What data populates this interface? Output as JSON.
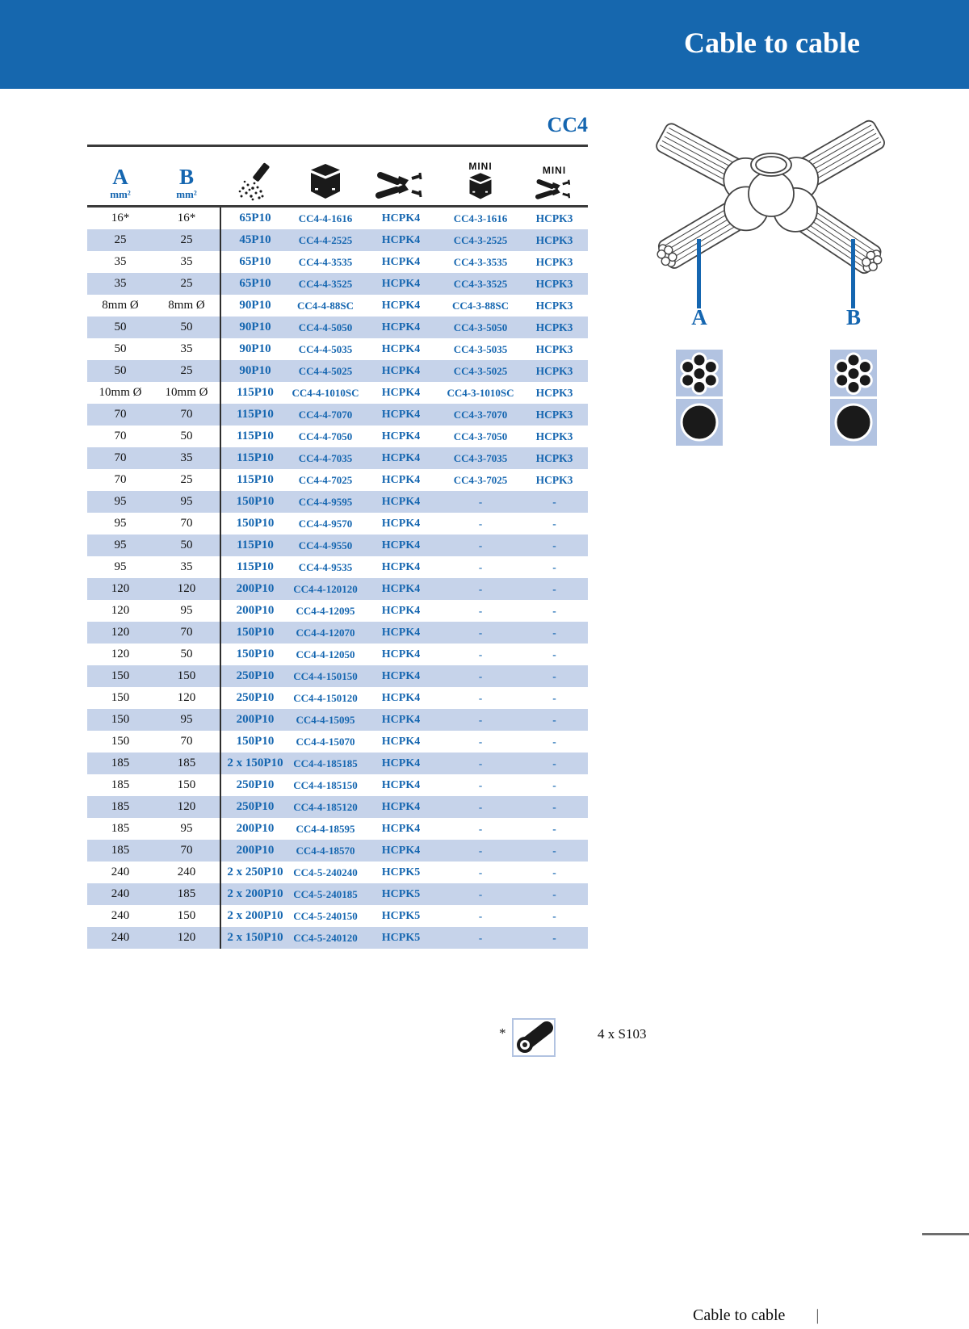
{
  "banner": {
    "title": "Cable to cable"
  },
  "table": {
    "title": "CC4",
    "columns": [
      {
        "label": "A",
        "unit": "mm²"
      },
      {
        "label": "B",
        "unit": "mm²"
      },
      {
        "icon": "powder-cartridge-icon"
      },
      {
        "icon": "mould-icon"
      },
      {
        "icon": "handle-clamp-icon"
      },
      {
        "label": "MINI",
        "icon": "mini-mould-icon"
      },
      {
        "label": "MINI",
        "icon": "mini-handle-clamp-icon"
      }
    ],
    "rows": [
      [
        "16*",
        "16*",
        "65P10",
        "CC4-4-1616",
        "HCPK4",
        "CC4-3-1616",
        "HCPK3"
      ],
      [
        "25",
        "25",
        "45P10",
        "CC4-4-2525",
        "HCPK4",
        "CC4-3-2525",
        "HCPK3"
      ],
      [
        "35",
        "35",
        "65P10",
        "CC4-4-3535",
        "HCPK4",
        "CC4-3-3535",
        "HCPK3"
      ],
      [
        "35",
        "25",
        "65P10",
        "CC4-4-3525",
        "HCPK4",
        "CC4-3-3525",
        "HCPK3"
      ],
      [
        "8mm Ø",
        "8mm Ø",
        "90P10",
        "CC4-4-88SC",
        "HCPK4",
        "CC4-3-88SC",
        "HCPK3"
      ],
      [
        "50",
        "50",
        "90P10",
        "CC4-4-5050",
        "HCPK4",
        "CC4-3-5050",
        "HCPK3"
      ],
      [
        "50",
        "35",
        "90P10",
        "CC4-4-5035",
        "HCPK4",
        "CC4-3-5035",
        "HCPK3"
      ],
      [
        "50",
        "25",
        "90P10",
        "CC4-4-5025",
        "HCPK4",
        "CC4-3-5025",
        "HCPK3"
      ],
      [
        "10mm Ø",
        "10mm Ø",
        "115P10",
        "CC4-4-1010SC",
        "HCPK4",
        "CC4-3-1010SC",
        "HCPK3"
      ],
      [
        "70",
        "70",
        "115P10",
        "CC4-4-7070",
        "HCPK4",
        "CC4-3-7070",
        "HCPK3"
      ],
      [
        "70",
        "50",
        "115P10",
        "CC4-4-7050",
        "HCPK4",
        "CC4-3-7050",
        "HCPK3"
      ],
      [
        "70",
        "35",
        "115P10",
        "CC4-4-7035",
        "HCPK4",
        "CC4-3-7035",
        "HCPK3"
      ],
      [
        "70",
        "25",
        "115P10",
        "CC4-4-7025",
        "HCPK4",
        "CC4-3-7025",
        "HCPK3"
      ],
      [
        "95",
        "95",
        "150P10",
        "CC4-4-9595",
        "HCPK4",
        "-",
        "-"
      ],
      [
        "95",
        "70",
        "150P10",
        "CC4-4-9570",
        "HCPK4",
        "-",
        "-"
      ],
      [
        "95",
        "50",
        "115P10",
        "CC4-4-9550",
        "HCPK4",
        "-",
        "-"
      ],
      [
        "95",
        "35",
        "115P10",
        "CC4-4-9535",
        "HCPK4",
        "-",
        "-"
      ],
      [
        "120",
        "120",
        "200P10",
        "CC4-4-120120",
        "HCPK4",
        "-",
        "-"
      ],
      [
        "120",
        "95",
        "200P10",
        "CC4-4-12095",
        "HCPK4",
        "-",
        "-"
      ],
      [
        "120",
        "70",
        "150P10",
        "CC4-4-12070",
        "HCPK4",
        "-",
        "-"
      ],
      [
        "120",
        "50",
        "150P10",
        "CC4-4-12050",
        "HCPK4",
        "-",
        "-"
      ],
      [
        "150",
        "150",
        "250P10",
        "CC4-4-150150",
        "HCPK4",
        "-",
        "-"
      ],
      [
        "150",
        "120",
        "250P10",
        "CC4-4-150120",
        "HCPK4",
        "-",
        "-"
      ],
      [
        "150",
        "95",
        "200P10",
        "CC4-4-15095",
        "HCPK4",
        "-",
        "-"
      ],
      [
        "150",
        "70",
        "150P10",
        "CC4-4-15070",
        "HCPK4",
        "-",
        "-"
      ],
      [
        "185",
        "185",
        "2 x 150P10",
        "CC4-4-185185",
        "HCPK4",
        "-",
        "-"
      ],
      [
        "185",
        "150",
        "250P10",
        "CC4-4-185150",
        "HCPK4",
        "-",
        "-"
      ],
      [
        "185",
        "120",
        "250P10",
        "CC4-4-185120",
        "HCPK4",
        "-",
        "-"
      ],
      [
        "185",
        "95",
        "200P10",
        "CC4-4-18595",
        "HCPK4",
        "-",
        "-"
      ],
      [
        "185",
        "70",
        "200P10",
        "CC4-4-18570",
        "HCPK4",
        "-",
        "-"
      ],
      [
        "240",
        "240",
        "2 x 250P10",
        "CC4-5-240240",
        "HCPK5",
        "-",
        "-"
      ],
      [
        "240",
        "185",
        "2 x 200P10",
        "CC4-5-240185",
        "HCPK5",
        "-",
        "-"
      ],
      [
        "240",
        "150",
        "2 x 200P10",
        "CC4-5-240150",
        "HCPK5",
        "-",
        "-"
      ],
      [
        "240",
        "120",
        "2 x 150P10",
        "CC4-5-240120",
        "HCPK5",
        "-",
        "-"
      ]
    ]
  },
  "figure": {
    "label_a": "A",
    "label_b": "B",
    "icon_names": [
      "stranded-conductor-icon",
      "solid-conductor-icon"
    ]
  },
  "footnote": {
    "marker": "*",
    "icon": "connector-sleeve-icon",
    "text": "4 x S103"
  },
  "footer": {
    "label": "Cable to cable",
    "separator": "|"
  },
  "colors": {
    "banner_blue": "#1667ae",
    "accent_blue": "#1566b0",
    "row_stripe": "#c6d3ea",
    "icon_square": "#b2c3e1"
  }
}
